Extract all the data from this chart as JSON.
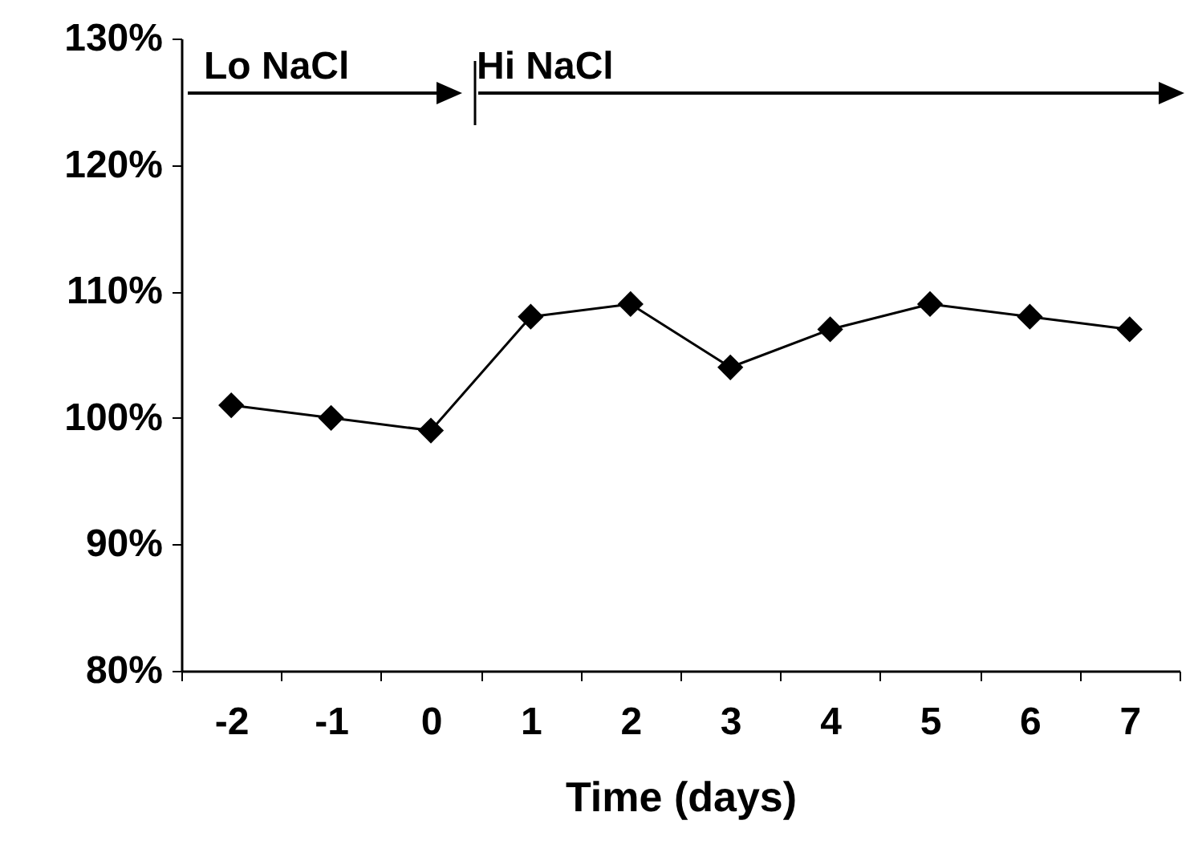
{
  "chart_data": {
    "type": "line",
    "xlabel": "Time (days)",
    "categories": [
      "-2",
      "-1",
      "0",
      "1",
      "2",
      "3",
      "4",
      "5",
      "6",
      "7"
    ],
    "series": [
      {
        "color": "#000000",
        "values": [
          101,
          100,
          99,
          108,
          109,
          104,
          107,
          109,
          108,
          107
        ]
      }
    ],
    "ylim": [
      80,
      130
    ],
    "yticks": [
      {
        "value": 80,
        "label": "80%"
      },
      {
        "value": 90,
        "label": "90%"
      },
      {
        "value": 100,
        "label": "100%"
      },
      {
        "value": 110,
        "label": "110%"
      },
      {
        "value": 120,
        "label": "120%"
      },
      {
        "value": 130,
        "label": "130%"
      }
    ],
    "annotations": [
      "Lo NaCl",
      "Hi NaCl"
    ],
    "grid": false,
    "legend": false,
    "marker": "diamond",
    "line_style": "solid"
  }
}
